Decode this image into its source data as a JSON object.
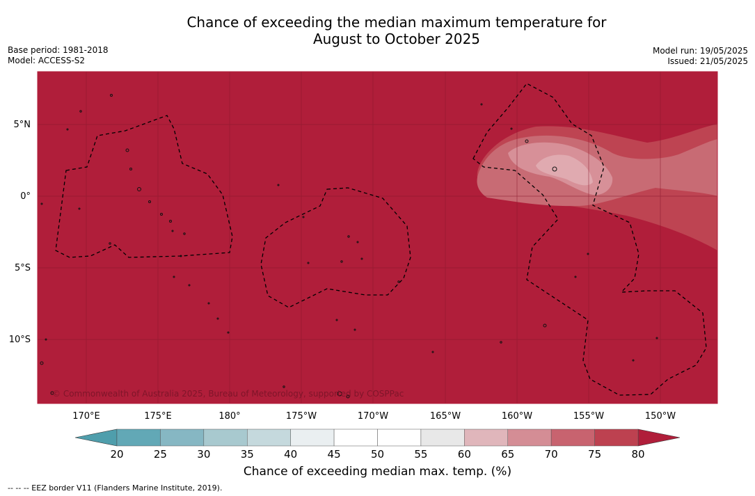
{
  "title": {
    "line1": "Chance of exceeding the median maximum temperature for",
    "line2": "August to October 2025"
  },
  "meta": {
    "base_period": "Base period: 1981-2018",
    "model": "Model: ACCESS-S2",
    "model_run": "Model run: 19/05/2025",
    "issued": "Issued: 21/05/2025"
  },
  "map": {
    "copyright": "© Commonwealth of Australia 2025, Bureau of Meteorology, supported by COSPPac",
    "lat_labels": [
      "5°N",
      "0°",
      "5°S",
      "10°S"
    ],
    "lon_labels": [
      "170°E",
      "175°E",
      "180°",
      "175°W",
      "170°W",
      "165°W",
      "160°W",
      "155°W",
      "150°W"
    ],
    "colors": {
      "background": "#b01e3a",
      "band_75_80": "#be4452",
      "band_70_75": "#c86b74",
      "band_65_70": "#d79098"
    }
  },
  "legend": {
    "title": "Chance of exceeding median max. temp. (%)",
    "tick_labels": [
      "20",
      "25",
      "30",
      "35",
      "40",
      "45",
      "50",
      "55",
      "60",
      "65",
      "70",
      "75",
      "80"
    ],
    "bins": [
      {
        "color": "#62a8b6"
      },
      {
        "color": "#86b7c3"
      },
      {
        "color": "#a8c9cf"
      },
      {
        "color": "#c5d9dd"
      },
      {
        "color": "#eaeff1"
      },
      {
        "color": "#ffffff"
      },
      {
        "color": "#ffffff"
      },
      {
        "color": "#e8e8e8"
      },
      {
        "color": "#e0b6bb"
      },
      {
        "color": "#d48d95"
      },
      {
        "color": "#c8636f"
      },
      {
        "color": "#bd4150"
      }
    ],
    "under_color": "#4f9eac",
    "over_color": "#b01e3a"
  },
  "footnote": "--  --  -- EEZ border V11 (Flanders Marine Institute, 2019)."
}
